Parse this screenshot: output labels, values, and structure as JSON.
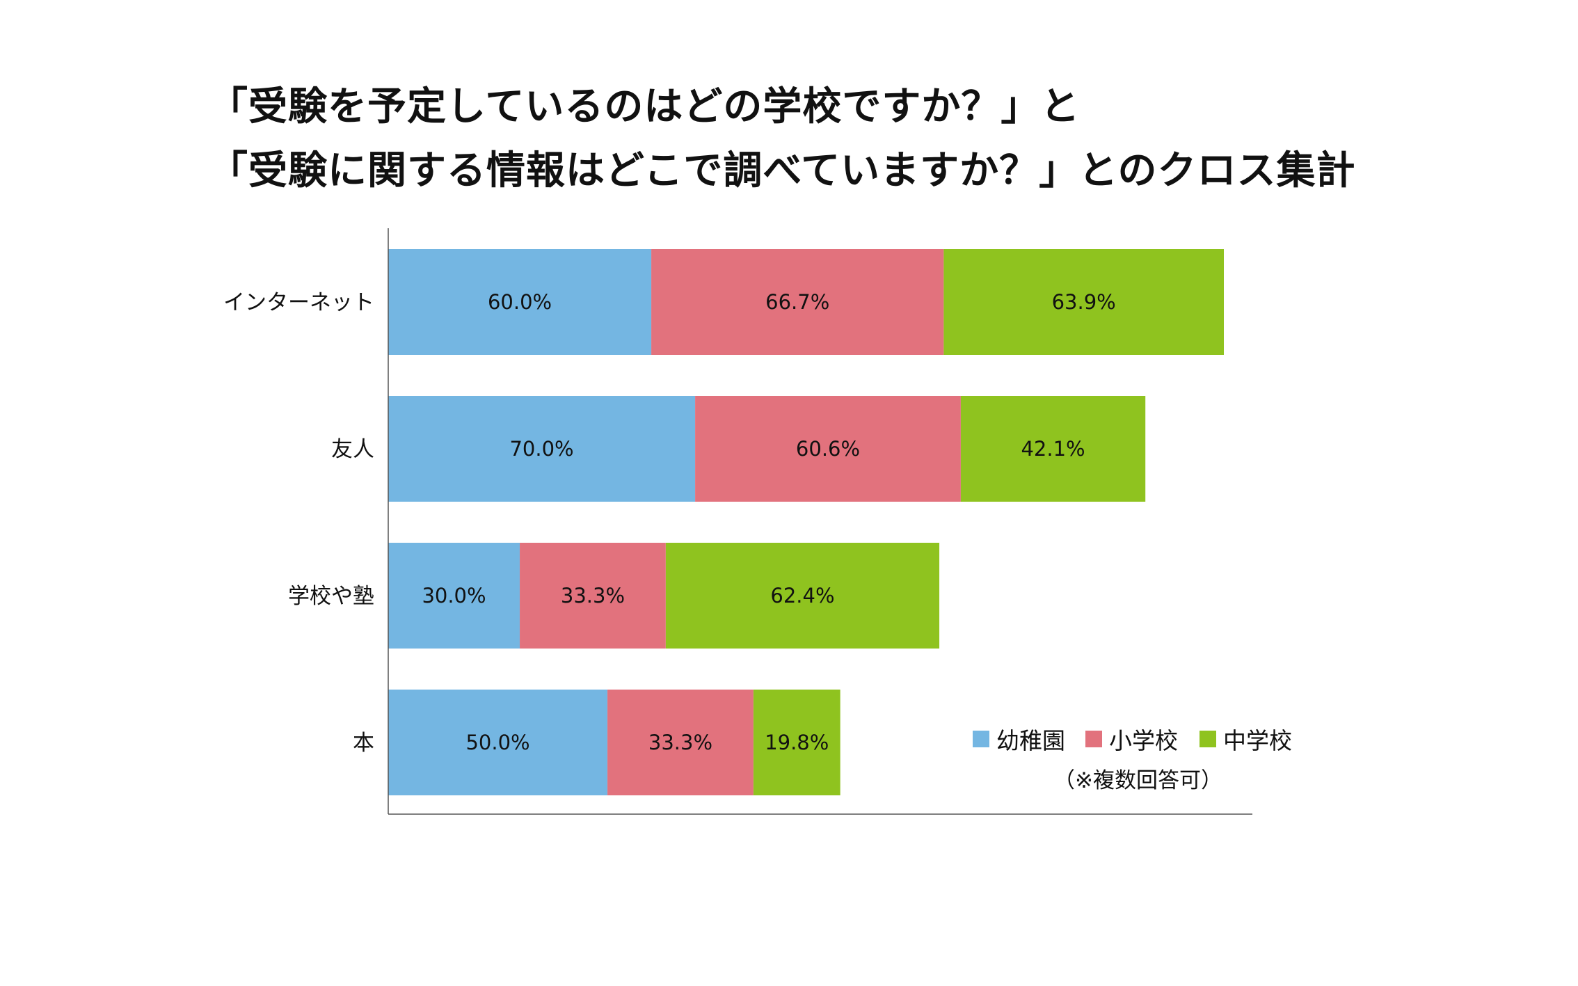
{
  "title_lines": [
    "「受験を予定しているのはどの学校ですか？」と",
    "「受験に関する情報はどこで調べていますか？」とのクロス集計"
  ],
  "chart_data": {
    "type": "bar",
    "orientation": "horizontal",
    "stacked": true,
    "categories": [
      "インターネット",
      "友人",
      "学校や塾",
      "本"
    ],
    "series": [
      {
        "name": "幼稚園",
        "color": "#74b6e2",
        "values": [
          60.0,
          70.0,
          30.0,
          50.0
        ],
        "labels": [
          "60.0%",
          "70.0%",
          "30.0%",
          "50.0%"
        ]
      },
      {
        "name": "小学校",
        "color": "#e2727d",
        "values": [
          66.7,
          60.6,
          33.3,
          33.3
        ],
        "labels": [
          "66.7%",
          "60.6%",
          "33.3%",
          "33.3%"
        ]
      },
      {
        "name": "中学校",
        "color": "#8fc31f",
        "values": [
          63.9,
          42.1,
          62.4,
          19.8
        ],
        "labels": [
          "63.9%",
          "42.1%",
          "62.4%",
          "19.8%"
        ]
      }
    ],
    "legend_position": "bottom-right",
    "note": "（※複数回答可）",
    "grid": false
  }
}
